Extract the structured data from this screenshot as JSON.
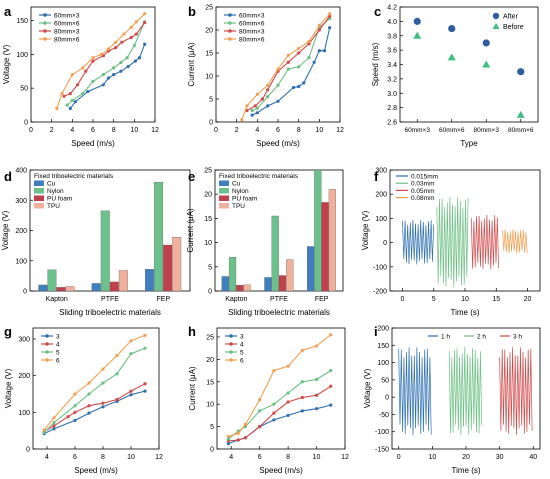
{
  "colors": {
    "blue": "#2E6FB0",
    "green": "#6CBF84",
    "red": "#D04A4A",
    "orange": "#F0A050",
    "navy": "#2F5E9C",
    "teal": "#3FBF80",
    "cu": "#3F7FC0",
    "nylon": "#6CC08C",
    "pufoam": "#C0404C",
    "tpu": "#F0B09C",
    "axis": "#000000"
  },
  "chart_data": [
    {
      "id": "a",
      "type": "line",
      "panel_label": "a",
      "xlabel": "Speed (m/s)",
      "ylabel": "Voltage (V)",
      "xlim": [
        0,
        12
      ],
      "ylim": [
        0,
        170
      ],
      "xticks": [
        "0",
        "2",
        "4",
        "6",
        "8",
        "10",
        "12"
      ],
      "yticks": [
        "0",
        "50",
        "100",
        "150"
      ],
      "legend": "top-left",
      "series": [
        {
          "name": "60mm×3",
          "color": "#2E6FB0",
          "x": [
            3.8,
            4.3,
            5.5,
            7.0,
            7.5,
            8.0,
            8.7,
            9.4,
            10.1,
            10.5,
            11.0
          ],
          "y": [
            20,
            30,
            45,
            55,
            65,
            70,
            75,
            82,
            90,
            95,
            115
          ]
        },
        {
          "name": "60mm×6",
          "color": "#6CBF84",
          "x": [
            3.5,
            4.0,
            5.0,
            6.0,
            7.0,
            8.0,
            8.7,
            9.3,
            10.0,
            11.0
          ],
          "y": [
            25,
            32,
            42,
            60,
            70,
            80,
            88,
            95,
            113,
            148
          ]
        },
        {
          "name": "80mm×3",
          "color": "#D04A4A",
          "x": [
            3.2,
            3.8,
            4.5,
            5.3,
            6.0,
            7.0,
            7.5,
            8.2,
            8.8,
            9.7,
            10.2,
            11.0
          ],
          "y": [
            38,
            42,
            55,
            75,
            90,
            98,
            105,
            110,
            118,
            125,
            130,
            147
          ]
        },
        {
          "name": "80mm×6",
          "color": "#F0A050",
          "x": [
            2.5,
            3.0,
            4.0,
            5.0,
            6.0,
            6.8,
            7.5,
            8.2,
            9.0,
            9.7,
            10.2,
            11.0
          ],
          "y": [
            20,
            42,
            70,
            80,
            95,
            100,
            108,
            118,
            130,
            140,
            148,
            160
          ]
        }
      ]
    },
    {
      "id": "b",
      "type": "line",
      "panel_label": "b",
      "xlabel": "Speed (m/s)",
      "ylabel": "Current (μA)",
      "xlim": [
        0,
        12
      ],
      "ylim": [
        0,
        25
      ],
      "xticks": [
        "0",
        "2",
        "4",
        "6",
        "8",
        "10",
        "12"
      ],
      "yticks": [
        "0",
        "5",
        "10",
        "15",
        "20",
        "25"
      ],
      "legend": "top-left",
      "series": [
        {
          "name": "60mm×3",
          "color": "#2E6FB0",
          "x": [
            3.5,
            4.0,
            5.0,
            6.0,
            7.5,
            8.0,
            8.5,
            9.5,
            10.0,
            10.5,
            11.0
          ],
          "y": [
            1.5,
            2.0,
            3.5,
            4.5,
            7.5,
            7.7,
            8.5,
            13,
            15.5,
            15.5,
            20.5
          ]
        },
        {
          "name": "60mm×6",
          "color": "#6CBF84",
          "x": [
            3.5,
            4.0,
            5.0,
            6.0,
            7.0,
            8.0,
            9.0,
            10.0,
            11.0
          ],
          "y": [
            2.5,
            3.0,
            5.5,
            8.0,
            11.5,
            12.0,
            14.0,
            20.5,
            22.5
          ]
        },
        {
          "name": "80mm×3",
          "color": "#D04A4A",
          "x": [
            3.0,
            3.8,
            4.5,
            5.0,
            6.0,
            7.0,
            8.0,
            9.0,
            10.0,
            11.0
          ],
          "y": [
            2.5,
            3.5,
            5.0,
            7.0,
            11.0,
            13.0,
            15.0,
            17.0,
            20.0,
            23.0
          ]
        },
        {
          "name": "80mm×6",
          "color": "#F0A050",
          "x": [
            2.5,
            3.0,
            4.0,
            5.0,
            6.0,
            7.0,
            8.0,
            9.0,
            10.0,
            11.0
          ],
          "y": [
            0.5,
            3.5,
            6.0,
            8.0,
            11.5,
            14.5,
            16.0,
            17.5,
            21.0,
            23.5
          ]
        }
      ]
    },
    {
      "id": "c",
      "type": "scatter",
      "panel_label": "c",
      "xlabel": "Type",
      "ylabel": "Speed (m/s)",
      "categories": [
        "60mm×3",
        "60mm×6",
        "80mm×3",
        "80mm×6"
      ],
      "ylim": [
        2.6,
        4.2
      ],
      "yticks": [
        "2.6",
        "2.8",
        "3.0",
        "3.2",
        "3.4",
        "3.6",
        "3.8",
        "4.0",
        "4.2"
      ],
      "legend": "top-right",
      "series": [
        {
          "name": "After",
          "color": "#2F5E9C",
          "marker": "circle",
          "values": [
            4.0,
            3.9,
            3.7,
            3.3
          ]
        },
        {
          "name": "Before",
          "color": "#3FBF80",
          "marker": "triangle",
          "values": [
            3.8,
            3.5,
            3.4,
            2.7
          ]
        }
      ]
    },
    {
      "id": "d",
      "type": "bar",
      "panel_label": "d",
      "xlabel": "Sliding triboelectric materials",
      "ylabel": "Voltage (V)",
      "legend_title": "Fixed triboelectric materials",
      "categories": [
        "Kapton",
        "PTFE",
        "FEP"
      ],
      "ylim": [
        0,
        400
      ],
      "yticks": [
        "0",
        "100",
        "200",
        "300",
        "400"
      ],
      "legend": "top-left",
      "series": [
        {
          "name": "Cu",
          "color": "#3F7FC0",
          "values": [
            20,
            25,
            72
          ]
        },
        {
          "name": "Nylon",
          "color": "#6CC08C",
          "values": [
            70,
            265,
            360
          ]
        },
        {
          "name": "PU foam",
          "color": "#C0404C",
          "values": [
            12,
            30,
            152
          ]
        },
        {
          "name": "TPU",
          "color": "#F0B09C",
          "values": [
            15,
            68,
            178
          ]
        }
      ]
    },
    {
      "id": "e",
      "type": "bar",
      "panel_label": "e",
      "xlabel": "Sliding triboelectric materials",
      "ylabel": "Current (μA)",
      "legend_title": "Fixed triboelectric materials",
      "categories": [
        "Kapton",
        "PTFE",
        "FEP"
      ],
      "ylim": [
        0,
        25
      ],
      "yticks": [
        "0",
        "5",
        "10",
        "15",
        "20",
        "25"
      ],
      "legend": "top-left",
      "series": [
        {
          "name": "Cu",
          "color": "#3F7FC0",
          "values": [
            3.0,
            2.8,
            9.2
          ]
        },
        {
          "name": "Nylon",
          "color": "#6CC08C",
          "values": [
            7.0,
            15.5,
            25.0
          ]
        },
        {
          "name": "PU foam",
          "color": "#C0404C",
          "values": [
            1.2,
            3.2,
            18.3
          ]
        },
        {
          "name": "TPU",
          "color": "#F0B09C",
          "values": [
            1.3,
            6.5,
            21.0
          ]
        }
      ]
    },
    {
      "id": "f",
      "type": "line",
      "panel_label": "f",
      "xlabel": "Time (s)",
      "ylabel": "Voltage (V)",
      "xlim": [
        -2,
        22
      ],
      "ylim": [
        -200,
        300
      ],
      "xticks": [
        "0",
        "5",
        "10",
        "15",
        "20"
      ],
      "yticks": [
        "-200",
        "-100",
        "0",
        "100",
        "200",
        "300"
      ],
      "legend": "top-left",
      "series": [
        {
          "name": "0.015mm",
          "color": "#2E6FB0",
          "t_range": [
            0,
            5
          ],
          "upper": 95,
          "lower": -90
        },
        {
          "name": "0.03mm",
          "color": "#6CBF84",
          "t_range": [
            5.5,
            10.5
          ],
          "upper": 190,
          "lower": -185
        },
        {
          "name": "0.05mm",
          "color": "#D04A4A",
          "t_range": [
            11,
            15.5
          ],
          "upper": 115,
          "lower": -110
        },
        {
          "name": "0.08mm",
          "color": "#F0A050",
          "t_range": [
            16,
            20
          ],
          "upper": 55,
          "lower": -45
        }
      ]
    },
    {
      "id": "g",
      "type": "line",
      "panel_label": "g",
      "xlabel": "Speed (m/s)",
      "ylabel": "Voltage (V)",
      "xlim": [
        3,
        12
      ],
      "ylim": [
        0,
        330
      ],
      "xticks": [
        "4",
        "6",
        "8",
        "10",
        "12"
      ],
      "yticks": [
        "0",
        "100",
        "200",
        "300"
      ],
      "legend": "top-left",
      "series": [
        {
          "name": "3",
          "color": "#2E6FB0",
          "x": [
            3.8,
            4.5,
            6.0,
            7.0,
            8.0,
            9.0,
            10.0,
            11.0
          ],
          "y": [
            42,
            55,
            78,
            98,
            115,
            130,
            148,
            158
          ]
        },
        {
          "name": "4",
          "color": "#D04A4A",
          "x": [
            3.8,
            4.5,
            5.5,
            6.0,
            7.0,
            8.0,
            9.0,
            10.0,
            11.0
          ],
          "y": [
            48,
            63,
            88,
            100,
            118,
            125,
            135,
            158,
            178
          ]
        },
        {
          "name": "5",
          "color": "#6CBF84",
          "x": [
            3.8,
            4.5,
            6.0,
            7.0,
            8.0,
            9.0,
            10.0,
            11.0
          ],
          "y": [
            45,
            72,
            118,
            150,
            180,
            205,
            260,
            275
          ]
        },
        {
          "name": "6",
          "color": "#F0A050",
          "x": [
            3.8,
            4.5,
            6.0,
            7.0,
            8.0,
            9.0,
            10.0,
            11.0
          ],
          "y": [
            52,
            85,
            150,
            180,
            218,
            255,
            295,
            310
          ]
        }
      ]
    },
    {
      "id": "h",
      "type": "line",
      "panel_label": "h",
      "xlabel": "Speed (m/s)",
      "ylabel": "Current (μA)",
      "xlim": [
        3,
        12
      ],
      "ylim": [
        0,
        27
      ],
      "xticks": [
        "4",
        "6",
        "8",
        "10",
        "12"
      ],
      "yticks": [
        "0",
        "5",
        "10",
        "15",
        "20",
        "25"
      ],
      "legend": "top-left",
      "series": [
        {
          "name": "3",
          "color": "#2E6FB0",
          "x": [
            3.8,
            4.5,
            5.0,
            6.0,
            7.0,
            8.0,
            9.0,
            10.0,
            11.0
          ],
          "y": [
            1.2,
            2.0,
            2.5,
            5.0,
            6.5,
            7.5,
            8.5,
            9.0,
            9.8
          ]
        },
        {
          "name": "4",
          "color": "#D04A4A",
          "x": [
            3.8,
            4.5,
            5.0,
            6.0,
            7.0,
            8.0,
            9.0,
            10.0,
            11.0
          ],
          "y": [
            1.8,
            2.0,
            2.5,
            5.0,
            8.0,
            10.5,
            11.5,
            12.0,
            14.0
          ]
        },
        {
          "name": "5",
          "color": "#6CBF84",
          "x": [
            3.8,
            4.5,
            5.0,
            6.0,
            7.0,
            8.0,
            9.0,
            10.0,
            11.0
          ],
          "y": [
            2.2,
            4.0,
            5.0,
            8.5,
            10.0,
            12.5,
            15.0,
            15.5,
            17.5
          ]
        },
        {
          "name": "6",
          "color": "#F0A050",
          "x": [
            3.8,
            4.5,
            5.0,
            6.0,
            7.0,
            8.0,
            9.0,
            10.0,
            11.0
          ],
          "y": [
            2.8,
            3.5,
            5.5,
            11.0,
            17.5,
            18.5,
            22.0,
            23.0,
            25.5
          ]
        }
      ]
    },
    {
      "id": "i",
      "type": "line",
      "panel_label": "i",
      "xlabel": "Time (s)",
      "ylabel": "Voltage (V)",
      "xlim": [
        -2,
        42
      ],
      "ylim": [
        -150,
        200
      ],
      "xticks": [
        "0",
        "10",
        "20",
        "30",
        "40"
      ],
      "yticks": [
        "-150",
        "-100",
        "-50",
        "0",
        "50",
        "100",
        "150",
        "200"
      ],
      "legend": "top-right",
      "series": [
        {
          "name": "1 h",
          "color": "#2E6FB0",
          "t_range": [
            0,
            10
          ],
          "upper": 145,
          "lower": -110
        },
        {
          "name": "2 h",
          "color": "#6CBF84",
          "t_range": [
            15,
            25
          ],
          "upper": 145,
          "lower": -110
        },
        {
          "name": "3 h",
          "color": "#D04A4A",
          "t_range": [
            30,
            40
          ],
          "upper": 145,
          "lower": -110
        }
      ]
    }
  ]
}
